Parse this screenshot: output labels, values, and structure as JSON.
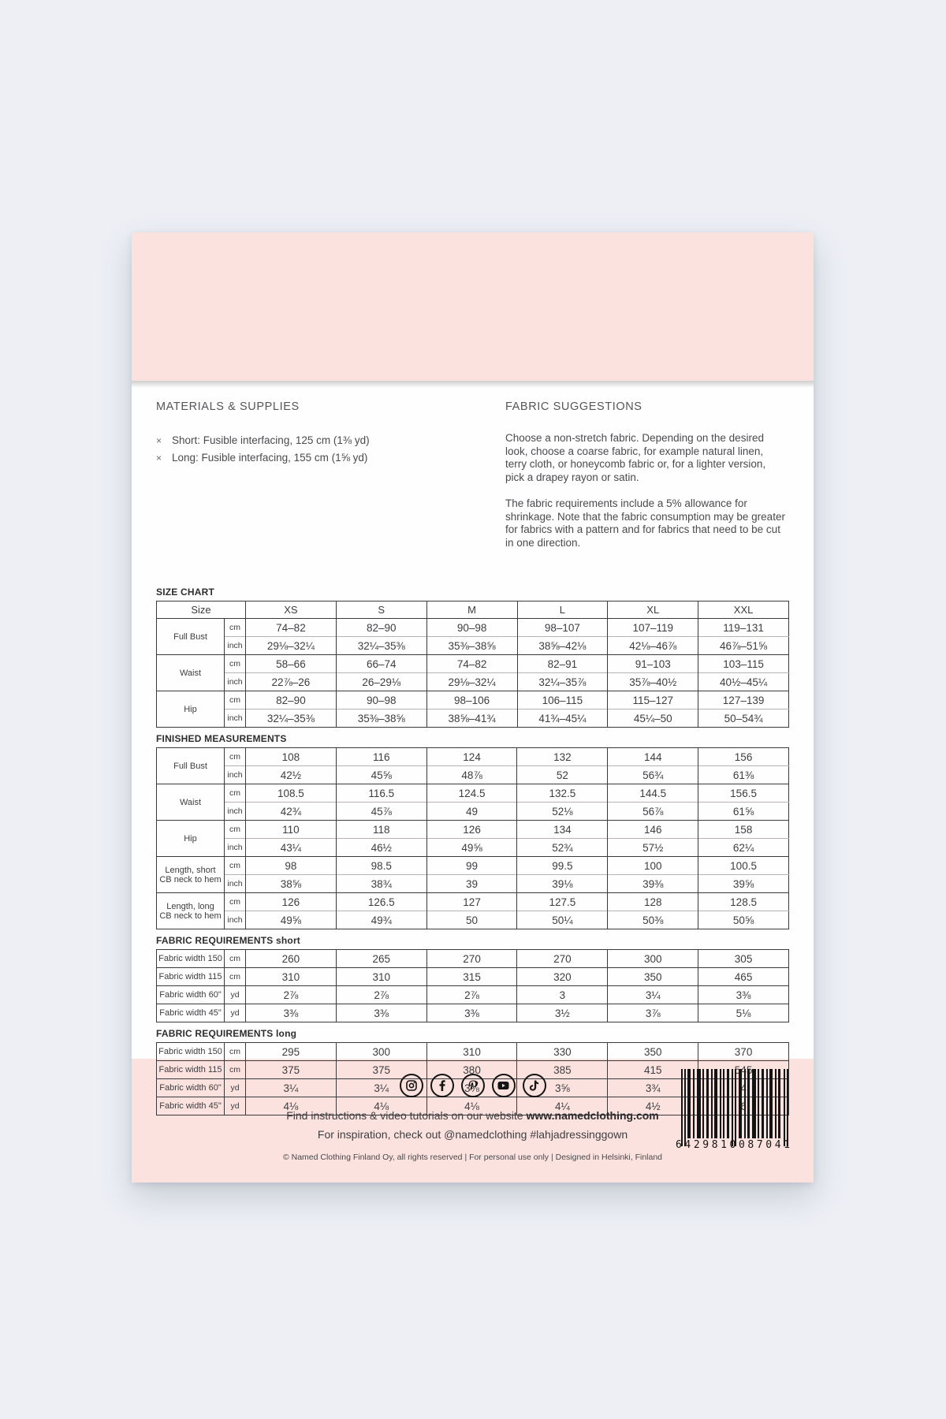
{
  "colors": {
    "page_bg": "#edeff5",
    "envelope_pink": "#fbe2de",
    "sheet_white": "#fefefe",
    "text_dark": "#3d3d41",
    "border_dark": "#3a3a3e"
  },
  "materials": {
    "heading": "MATERIALS & SUPPLIES",
    "items": [
      {
        "bullet": "×",
        "text": "Short: Fusible interfacing, 125 cm (1⅜ yd)"
      },
      {
        "bullet": "×",
        "text": "Long: Fusible interfacing, 155 cm (1⅝ yd)"
      }
    ]
  },
  "fabric_suggestions": {
    "heading": "FABRIC SUGGESTIONS",
    "p1": "Choose a non-stretch fabric. Depending on the desired look, choose a coarse fabric, for example natural linen, terry cloth, or honeycomb fabric or, for a lighter version, pick a drapey rayon or satin.",
    "p2": "The fabric requirements include a 5% allowance for shrinkage. Note that the fabric consumption may be greater for fabrics with a pattern and for fabrics that need to be cut in one direction."
  },
  "tables": [
    {
      "id": "size-chart",
      "title": "SIZE CHART",
      "title_suffix": "",
      "header": {
        "label": "Size",
        "sizes": [
          "XS",
          "S",
          "M",
          "L",
          "XL",
          "XXL"
        ]
      },
      "groups": [
        {
          "label_lines": [
            "Full Bust"
          ],
          "rows": [
            {
              "unit": "cm",
              "values": [
                "74–82",
                "82–90",
                "90–98",
                "98–107",
                "107–119",
                "119–131"
              ]
            },
            {
              "unit": "inch",
              "values": [
                "29⅛–32¼",
                "32¼–35⅜",
                "35⅜–38⅝",
                "38⅝–42⅛",
                "42⅛–46⅞",
                "46⅞–51⅝"
              ]
            }
          ]
        },
        {
          "label_lines": [
            "Waist"
          ],
          "rows": [
            {
              "unit": "cm",
              "values": [
                "58–66",
                "66–74",
                "74–82",
                "82–91",
                "91–103",
                "103–115"
              ]
            },
            {
              "unit": "inch",
              "values": [
                "22⅞–26",
                "26–29⅛",
                "29⅛–32¼",
                "32¼–35⅞",
                "35⅞–40½",
                "40½–45¼"
              ]
            }
          ]
        },
        {
          "label_lines": [
            "Hip"
          ],
          "rows": [
            {
              "unit": "cm",
              "values": [
                "82–90",
                "90–98",
                "98–106",
                "106–115",
                "115–127",
                "127–139"
              ]
            },
            {
              "unit": "inch",
              "values": [
                "32¼–35⅜",
                "35⅜–38⅝",
                "38⅝–41¾",
                "41¾–45¼",
                "45¼–50",
                "50–54¾"
              ]
            }
          ]
        }
      ]
    },
    {
      "id": "finished-measurements",
      "title": "FINISHED MEASUREMENTS",
      "title_suffix": "",
      "header": null,
      "groups": [
        {
          "label_lines": [
            "Full Bust"
          ],
          "rows": [
            {
              "unit": "cm",
              "values": [
                "108",
                "116",
                "124",
                "132",
                "144",
                "156"
              ]
            },
            {
              "unit": "inch",
              "values": [
                "42½",
                "45⅝",
                "48⅞",
                "52",
                "56¾",
                "61⅜"
              ]
            }
          ]
        },
        {
          "label_lines": [
            "Waist"
          ],
          "rows": [
            {
              "unit": "cm",
              "values": [
                "108.5",
                "116.5",
                "124.5",
                "132.5",
                "144.5",
                "156.5"
              ]
            },
            {
              "unit": "inch",
              "values": [
                "42¾",
                "45⅞",
                "49",
                "52⅛",
                "56⅞",
                "61⅝"
              ]
            }
          ]
        },
        {
          "label_lines": [
            "Hip"
          ],
          "rows": [
            {
              "unit": "cm",
              "values": [
                "110",
                "118",
                "126",
                "134",
                "146",
                "158"
              ]
            },
            {
              "unit": "inch",
              "values": [
                "43¼",
                "46½",
                "49⅝",
                "52¾",
                "57½",
                "62¼"
              ]
            }
          ]
        },
        {
          "label_lines": [
            "Length, short",
            "CB neck to hem"
          ],
          "rows": [
            {
              "unit": "cm",
              "values": [
                "98",
                "98.5",
                "99",
                "99.5",
                "100",
                "100.5"
              ]
            },
            {
              "unit": "inch",
              "values": [
                "38⅝",
                "38¾",
                "39",
                "39⅛",
                "39⅜",
                "39⅝"
              ]
            }
          ]
        },
        {
          "label_lines": [
            "Length, long",
            "CB neck to hem"
          ],
          "rows": [
            {
              "unit": "cm",
              "values": [
                "126",
                "126.5",
                "127",
                "127.5",
                "128",
                "128.5"
              ]
            },
            {
              "unit": "inch",
              "values": [
                "49⅝",
                "49¾",
                "50",
                "50¼",
                "50⅜",
                "50⅝"
              ]
            }
          ]
        }
      ]
    },
    {
      "id": "fabric-requirements-short",
      "title": "FABRIC REQUIREMENTS",
      "title_suffix": " short",
      "header": null,
      "groups": [
        {
          "label_lines": [
            "Fabric width 150"
          ],
          "rows": [
            {
              "unit": "cm",
              "values": [
                "260",
                "265",
                "270",
                "270",
                "300",
                "305"
              ]
            }
          ]
        },
        {
          "label_lines": [
            "Fabric width 115"
          ],
          "rows": [
            {
              "unit": "cm",
              "values": [
                "310",
                "310",
                "315",
                "320",
                "350",
                "465"
              ]
            }
          ]
        },
        {
          "label_lines": [
            "Fabric width 60\""
          ],
          "rows": [
            {
              "unit": "yd",
              "values": [
                "2⅞",
                "2⅞",
                "2⅞",
                "3",
                "3¼",
                "3⅜"
              ]
            }
          ]
        },
        {
          "label_lines": [
            "Fabric width 45\""
          ],
          "rows": [
            {
              "unit": "yd",
              "values": [
                "3⅜",
                "3⅜",
                "3⅜",
                "3½",
                "3⅞",
                "5⅛"
              ]
            }
          ]
        }
      ]
    },
    {
      "id": "fabric-requirements-long",
      "title": "FABRIC REQUIREMENTS",
      "title_suffix": " long",
      "header": null,
      "groups": [
        {
          "label_lines": [
            "Fabric width 150"
          ],
          "rows": [
            {
              "unit": "cm",
              "values": [
                "295",
                "300",
                "310",
                "330",
                "350",
                "370"
              ]
            }
          ]
        },
        {
          "label_lines": [
            "Fabric width 115"
          ],
          "rows": [
            {
              "unit": "cm",
              "values": [
                "375",
                "375",
                "380",
                "385",
                "415",
                "545"
              ]
            }
          ]
        },
        {
          "label_lines": [
            "Fabric width 60\""
          ],
          "rows": [
            {
              "unit": "yd",
              "values": [
                "3¼",
                "3¼",
                "3⅜",
                "3⅝",
                "3¾",
                "4"
              ]
            }
          ]
        },
        {
          "label_lines": [
            "Fabric width 45\""
          ],
          "rows": [
            {
              "unit": "yd",
              "values": [
                "4⅛",
                "4⅛",
                "4⅛",
                "4¼",
                "4½",
                "6"
              ]
            }
          ]
        }
      ]
    }
  ],
  "footer": {
    "social_icons": [
      "instagram",
      "facebook",
      "pinterest",
      "youtube",
      "tiktok"
    ],
    "line1_prefix": "Find instructions & video tutorials on our website ",
    "line1_bold": "www.namedclothing.com",
    "line2": "For inspiration, check out @namedclothing #lahjadressinggown",
    "copyright": "© Named Clothing Finland Oy, all rights reserved | For personal use only | Designed in Helsinki, Finland",
    "barcode_digits": "6429810087041"
  }
}
